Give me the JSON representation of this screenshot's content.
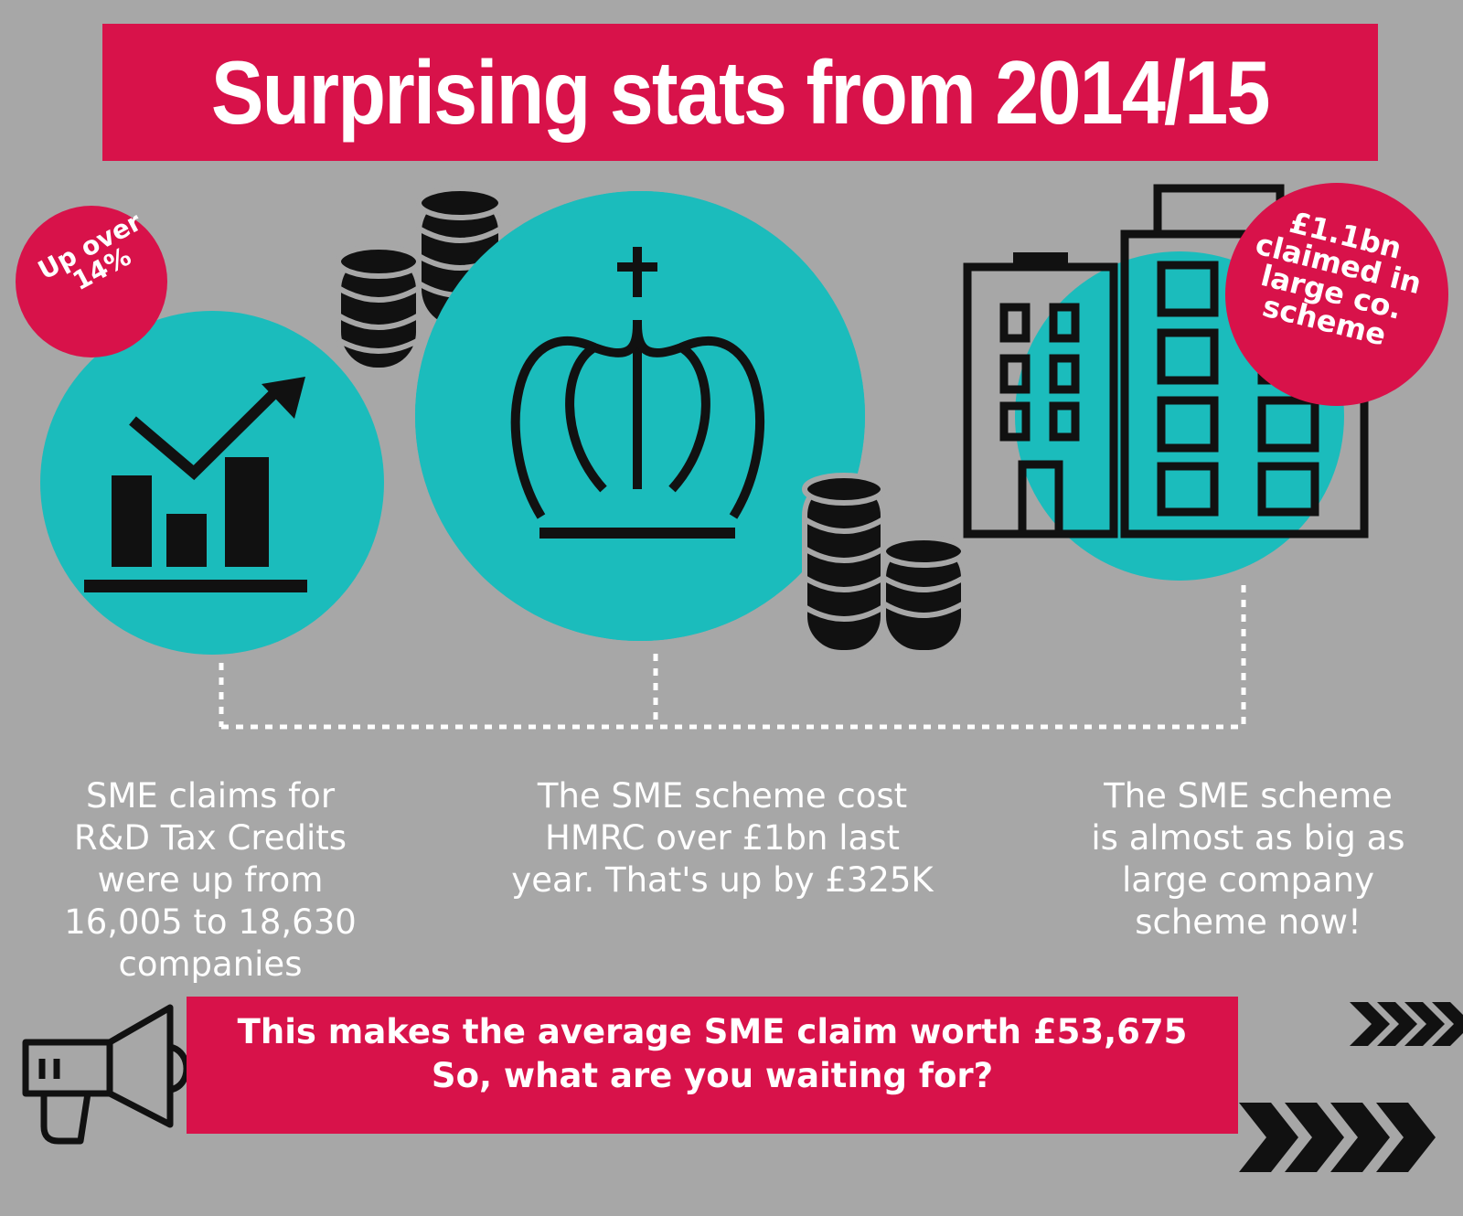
{
  "title": "Surprising stats from 2014/15",
  "badges": {
    "left": "Up over\n14%",
    "right": "£1.1bn\nclaimed in\nlarge co.\nscheme"
  },
  "captions": [
    "SME claims for\nR&D Tax Credits\nwere up from\n16,005 to 18,630\ncompanies",
    "The SME scheme cost\nHMRC over £1bn last\nyear. That's up by £325K",
    "The SME scheme\nis almost as big as\nlarge company\nscheme now!"
  ],
  "cta": "This makes the average SME claim worth £53,675\nSo, what are you waiting for?",
  "icons": [
    "growth-chart-icon",
    "crown-icon",
    "coin-stack-icon",
    "buildings-icon",
    "megaphone-icon",
    "chevron-arrows-icon"
  ],
  "colors": {
    "background": "#a7a7a7",
    "accent": "#d8124a",
    "teal": "#1bbcbc",
    "ink": "#111111",
    "text": "#ffffff"
  }
}
